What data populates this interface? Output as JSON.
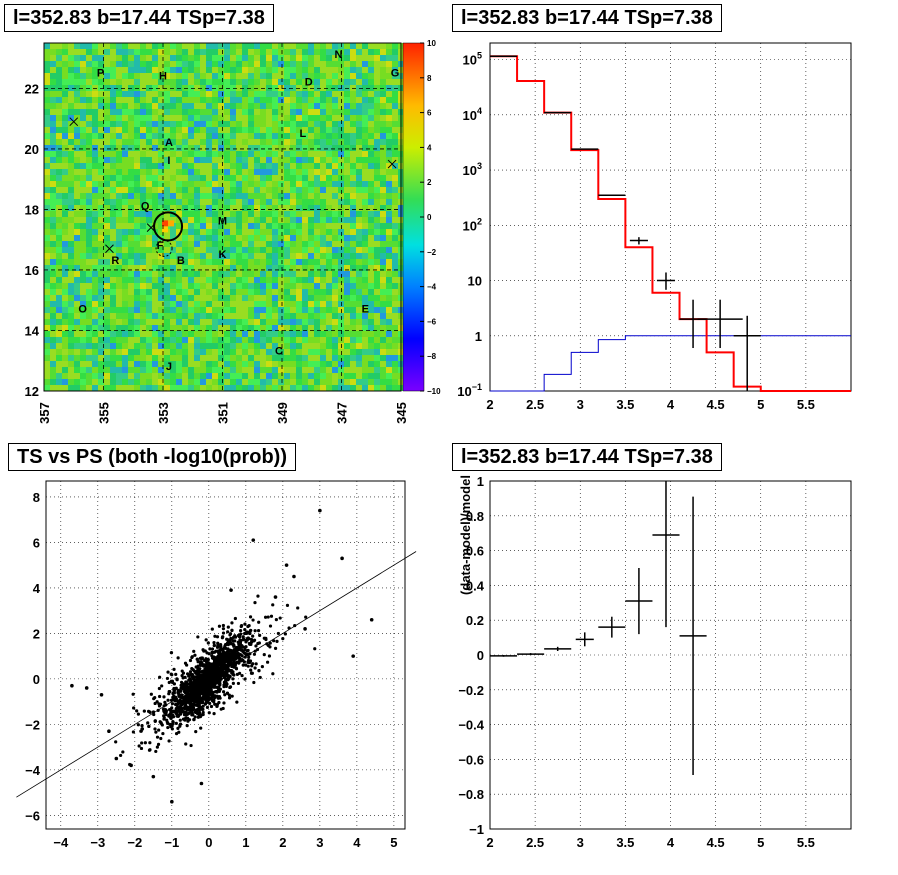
{
  "panels": {
    "skymap_title": "l=352.83 b=17.44 TSp=7.38",
    "spectrum_title": "l=352.83 b=17.44 TSp=7.38",
    "scatter_title": "TS vs PS (both -log10(prob))",
    "residual_title": "l=352.83 b=17.44 TSp=7.38"
  },
  "colors": {
    "data": "#000000",
    "model": "#ff0000",
    "source": "#0000cc",
    "grid": "#000000"
  },
  "chart_data": [
    {
      "type": "heatmap",
      "title": "l=352.83 b=17.44 TSp=7.38",
      "xlim": [
        357,
        345
      ],
      "ylim": [
        12,
        23.5
      ],
      "x_ticks": [
        "357",
        "355",
        "353",
        "351",
        "349",
        "347",
        "345"
      ],
      "y_ticks": [
        "12",
        "14",
        "16",
        "18",
        "20",
        "22"
      ],
      "colorbar": {
        "range": [
          -10,
          10
        ],
        "ticks": [
          "10",
          "8",
          "6",
          "4",
          "2",
          "0",
          "−2",
          "−4",
          "−6",
          "−8",
          "−10"
        ]
      },
      "labels": [
        {
          "text": "P",
          "l": 355.1,
          "b": 22.4
        },
        {
          "text": "H",
          "l": 353.0,
          "b": 22.3
        },
        {
          "text": "N",
          "l": 347.1,
          "b": 23.0
        },
        {
          "text": "D",
          "l": 348.1,
          "b": 22.1
        },
        {
          "text": "G",
          "l": 345.2,
          "b": 22.4
        },
        {
          "text": "L",
          "l": 348.3,
          "b": 20.4
        },
        {
          "text": "A",
          "l": 352.8,
          "b": 20.1
        },
        {
          "text": "I",
          "l": 352.8,
          "b": 19.5
        },
        {
          "text": "Q",
          "l": 353.6,
          "b": 18.0
        },
        {
          "text": "M",
          "l": 351.0,
          "b": 17.5
        },
        {
          "text": "F",
          "l": 353.1,
          "b": 16.7
        },
        {
          "text": "R",
          "l": 354.6,
          "b": 16.2
        },
        {
          "text": "B",
          "l": 352.4,
          "b": 16.2
        },
        {
          "text": "K",
          "l": 351.0,
          "b": 16.4
        },
        {
          "text": "O",
          "l": 355.7,
          "b": 14.6
        },
        {
          "text": "E",
          "l": 346.2,
          "b": 14.6
        },
        {
          "text": "C",
          "l": 349.1,
          "b": 13.2
        },
        {
          "text": "J",
          "l": 352.8,
          "b": 12.7
        }
      ],
      "crosses": [
        {
          "l": 356.0,
          "b": 20.9
        },
        {
          "l": 345.3,
          "b": 19.5
        },
        {
          "l": 354.8,
          "b": 16.7
        },
        {
          "l": 353.4,
          "b": 17.4
        }
      ],
      "highlight": {
        "l": 352.83,
        "b": 17.44
      }
    },
    {
      "type": "line",
      "title": "l=352.83 b=17.44 TSp=7.38",
      "y_scale": "log",
      "xlim": [
        2,
        6
      ],
      "ylim": [
        0.1,
        200000
      ],
      "x_ticks": [
        "2",
        "2.5",
        "3",
        "3.5",
        "4",
        "4.5",
        "5",
        "5.5"
      ],
      "y_ticks": [
        {
          "v": 0.1,
          "m": "10",
          "e": "−1"
        },
        {
          "v": 1,
          "m": "1",
          "e": ""
        },
        {
          "v": 10,
          "m": "10",
          "e": ""
        },
        {
          "v": 100,
          "m": "10",
          "e": "2"
        },
        {
          "v": 1000,
          "m": "10",
          "e": "3"
        },
        {
          "v": 10000,
          "m": "10",
          "e": "4"
        },
        {
          "v": 100000,
          "m": "10",
          "e": "5"
        }
      ],
      "bin_edges": [
        2.0,
        2.3,
        2.6,
        2.9,
        3.2,
        3.5,
        3.8,
        4.1,
        4.4,
        4.7,
        5.0,
        6.0
      ],
      "series": [
        {
          "name": "",
          "values": [
            115000,
            41000,
            11000,
            2300,
            300,
            40,
            6,
            2,
            0.5,
            0.12,
            0.1
          ]
        },
        {
          "name": "",
          "values": [
            0.03,
            0.08,
            0.2,
            0.5,
            0.85,
            1.0,
            1.0,
            1.0,
            1.0,
            1.0,
            1.0
          ]
        }
      ],
      "data_points": [
        {
          "x": 2.15,
          "y": 115000,
          "xerr": 0.15,
          "ylo": 115000,
          "yhi": 115000
        },
        {
          "x": 2.75,
          "y": 11000,
          "xerr": 0.15,
          "ylo": 11000,
          "yhi": 11000
        },
        {
          "x": 3.05,
          "y": 2400,
          "xerr": 0.15,
          "ylo": 2400,
          "yhi": 2400
        },
        {
          "x": 3.35,
          "y": 350,
          "xerr": 0.15,
          "ylo": 350,
          "yhi": 350
        },
        {
          "x": 3.65,
          "y": 53,
          "xerr": 0.1,
          "ylo": 45,
          "yhi": 61
        },
        {
          "x": 3.95,
          "y": 10,
          "xerr": 0.1,
          "ylo": 6.8,
          "yhi": 14
        },
        {
          "x": 4.25,
          "y": 2,
          "xerr": 0.15,
          "ylo": 0.6,
          "yhi": 4.5
        },
        {
          "x": 4.55,
          "y": 2,
          "xerr": 0.25,
          "ylo": 0.6,
          "yhi": 4.5
        },
        {
          "x": 4.85,
          "y": 1,
          "xerr": 0.15,
          "ylo": 0.1,
          "yhi": 2.3
        }
      ]
    },
    {
      "type": "scatter",
      "title": "TS vs PS (both -log10(prob))",
      "xlim": [
        -4.4,
        5.3
      ],
      "ylim": [
        -6.6,
        8.7
      ],
      "x_ticks": [
        "−4",
        "−3",
        "−2",
        "−1",
        "0",
        "1",
        "2",
        "3",
        "4",
        "5"
      ],
      "y_ticks": [
        "−6",
        "−4",
        "−2",
        "0",
        "2",
        "4",
        "6",
        "8"
      ],
      "fit_line": {
        "slope": 1.0,
        "intercept": 0.0
      },
      "points": [
        [
          3.0,
          7.4
        ],
        [
          1.2,
          6.1
        ],
        [
          3.6,
          5.3
        ],
        [
          2.3,
          4.5
        ],
        [
          4.4,
          2.6
        ],
        [
          3.9,
          1.0
        ],
        [
          2.1,
          5.0
        ],
        [
          -3.3,
          -0.4
        ],
        [
          -3.7,
          -0.3
        ],
        [
          -2.9,
          -0.7
        ],
        [
          -2.5,
          -3.5
        ],
        [
          -2.1,
          -3.8
        ],
        [
          -1.5,
          -4.3
        ],
        [
          -1.0,
          -5.4
        ],
        [
          -0.2,
          -4.6
        ],
        [
          0.6,
          3.9
        ],
        [
          1.8,
          3.6
        ],
        [
          2.6,
          2.2
        ],
        [
          -1.8,
          -2.2
        ],
        [
          -2.7,
          -2.3
        ]
      ],
      "cloud_points": 1800
    },
    {
      "type": "line",
      "title": "l=352.83 b=17.44 TSp=7.38",
      "ylabel": "(data-model)/model",
      "xlim": [
        2,
        6
      ],
      "ylim": [
        -1,
        1
      ],
      "x_ticks": [
        "2",
        "2.5",
        "3",
        "3.5",
        "4",
        "4.5",
        "5",
        "5.5"
      ],
      "y_ticks": [
        "−1",
        "−0.8",
        "−0.6",
        "−0.4",
        "−0.2",
        "0",
        "0.2",
        "0.4",
        "0.6",
        "0.8",
        "1"
      ],
      "data_points": [
        {
          "x": 2.15,
          "y": -0.005,
          "xerr": 0.15,
          "err": 0.005
        },
        {
          "x": 2.45,
          "y": 0.005,
          "xerr": 0.15,
          "err": 0.006
        },
        {
          "x": 2.75,
          "y": 0.035,
          "xerr": 0.15,
          "err": 0.012
        },
        {
          "x": 3.05,
          "y": 0.09,
          "xerr": 0.1,
          "err": 0.04
        },
        {
          "x": 3.35,
          "y": 0.16,
          "xerr": 0.15,
          "err": 0.06
        },
        {
          "x": 3.65,
          "y": 0.31,
          "xerr": 0.15,
          "err": 0.19
        },
        {
          "x": 3.95,
          "y": 0.69,
          "xerr": 0.15,
          "err": 0.53
        },
        {
          "x": 4.25,
          "y": 0.11,
          "xerr": 0.15,
          "err": 0.8
        }
      ]
    }
  ]
}
